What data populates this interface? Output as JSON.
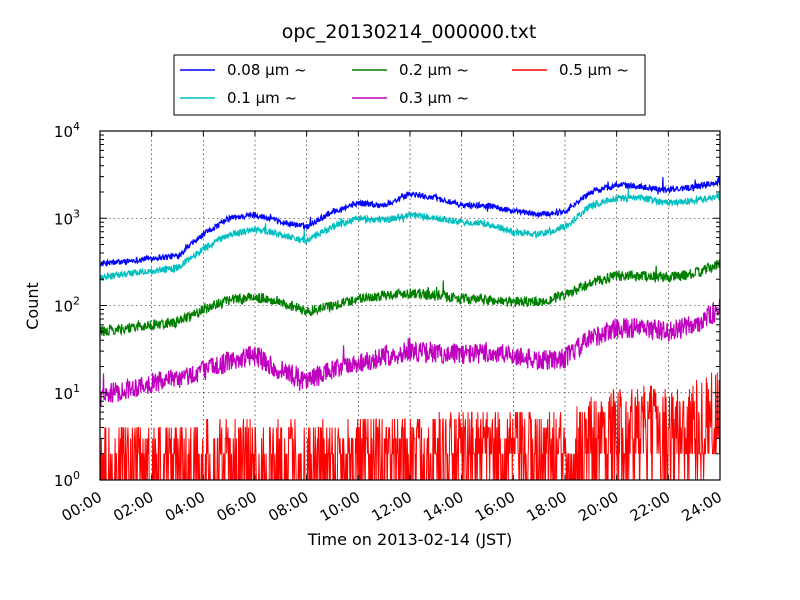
{
  "chart_data": {
    "type": "line",
    "title": "opc_20130214_000000.txt",
    "xlabel": "Time on 2013-02-14 (JST)",
    "ylabel": "Count",
    "y_scale": "log",
    "ylim": [
      1,
      10000
    ],
    "xlim": [
      "00:00",
      "24:00"
    ],
    "grid": true,
    "legend_position": "top (above plot)",
    "x_ticks": [
      "00:00",
      "02:00",
      "04:00",
      "06:00",
      "08:00",
      "10:00",
      "12:00",
      "14:00",
      "16:00",
      "18:00",
      "20:00",
      "22:00",
      "24:00"
    ],
    "y_ticks": [
      {
        "base": "10",
        "exp": "0",
        "value": 1
      },
      {
        "base": "10",
        "exp": "1",
        "value": 10
      },
      {
        "base": "10",
        "exp": "2",
        "value": 100
      },
      {
        "base": "10",
        "exp": "3",
        "value": 1000
      },
      {
        "base": "10",
        "exp": "4",
        "value": 10000
      }
    ],
    "x": [
      "00:00",
      "01:00",
      "02:00",
      "03:00",
      "04:00",
      "05:00",
      "06:00",
      "07:00",
      "08:00",
      "09:00",
      "10:00",
      "11:00",
      "12:00",
      "13:00",
      "14:00",
      "15:00",
      "16:00",
      "17:00",
      "18:00",
      "19:00",
      "20:00",
      "21:00",
      "22:00",
      "23:00",
      "24:00"
    ],
    "series": [
      {
        "name": "0.08 μm ~",
        "color": "#0000ff",
        "values": [
          300,
          320,
          350,
          370,
          650,
          1000,
          1100,
          900,
          800,
          1200,
          1500,
          1400,
          1900,
          1700,
          1400,
          1400,
          1200,
          1100,
          1200,
          2000,
          2400,
          2300,
          2100,
          2300,
          2600
        ]
      },
      {
        "name": "0.1 μm ~",
        "color": "#00bfbf",
        "values": [
          210,
          230,
          250,
          270,
          450,
          650,
          750,
          650,
          550,
          800,
          1000,
          950,
          1100,
          1000,
          900,
          850,
          700,
          650,
          800,
          1400,
          1700,
          1700,
          1500,
          1600,
          1800
        ]
      },
      {
        "name": "0.2 μm ~",
        "color": "#008000",
        "values": [
          50,
          55,
          60,
          65,
          90,
          115,
          125,
          110,
          85,
          100,
          120,
          130,
          140,
          130,
          120,
          115,
          110,
          110,
          130,
          180,
          220,
          220,
          210,
          230,
          300
        ]
      },
      {
        "name": "0.3 μm ~",
        "color": "#bf00bf",
        "values": [
          9,
          11,
          13,
          14,
          18,
          23,
          27,
          18,
          14,
          18,
          22,
          26,
          30,
          28,
          28,
          28,
          27,
          23,
          25,
          42,
          55,
          55,
          50,
          60,
          90
        ]
      },
      {
        "name": "0.5 μm ~",
        "color": "#ff0000",
        "values": [
          1.5,
          1.6,
          1.7,
          1.7,
          1.8,
          1.9,
          2,
          1.9,
          1.8,
          2,
          2,
          2.1,
          2.2,
          2.2,
          2.3,
          2.4,
          2.4,
          2.3,
          2.5,
          3.5,
          4.2,
          4.5,
          4.5,
          5,
          8
        ]
      }
    ]
  }
}
